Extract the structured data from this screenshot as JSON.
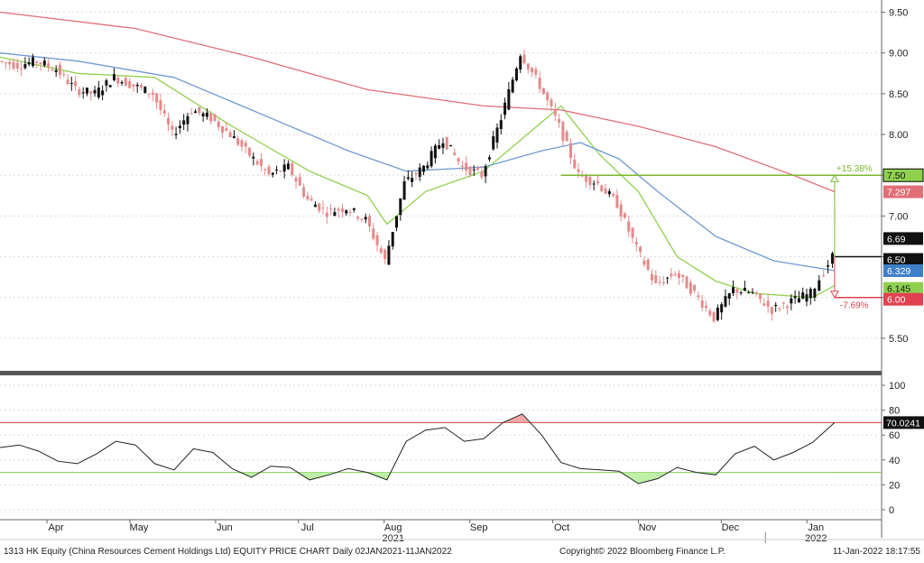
{
  "footer": {
    "left": "1313 HK Equity (China Resources Cement Holdings Ltd) EQUITY PRICE CHART  Daily 02JAN2021-11JAN2022",
    "center": "Copyright© 2022 Bloomberg Finance L.P.",
    "right": "11-Jan-2022  18:17:55"
  },
  "colors": {
    "up": "#111111",
    "down": "#e58a8a",
    "ma_green": "#8fd14f",
    "ma_blue": "#6f9bd1",
    "ma_red": "#e06f76",
    "target_up": "#7ab72b",
    "target_down": "#e0424f",
    "rsi_line": "#222222",
    "rsi_ob": "#c7302f",
    "rsi_os": "#7ac943",
    "panel_sep": "#555555"
  },
  "chart_data": [
    {
      "type": "candlestick",
      "x_axis": {
        "months": [
          "Apr",
          "May",
          "Jun",
          "Jul",
          "Aug",
          "Sep",
          "Oct",
          "Nov",
          "Dec",
          "Jan"
        ],
        "years": [
          {
            "label": "2021",
            "under": "Aug"
          },
          {
            "label": "2022",
            "under": "Jan"
          }
        ],
        "range": [
          "2021-03-15",
          "2022-01-28"
        ]
      },
      "y_axis": {
        "ticks": [
          5.5,
          6.0,
          6.5,
          7.0,
          7.5,
          8.0,
          8.5,
          9.0,
          9.5
        ],
        "tick_labels": [
          "5.50",
          "6.00",
          "6.50",
          "7.00",
          "7.50",
          "8.00",
          "8.50",
          "9.00",
          "9.50"
        ],
        "range": [
          5.1,
          9.65
        ],
        "side": "right"
      },
      "close_series": [
        [
          "2021-03-15",
          8.9
        ],
        [
          "2021-03-22",
          8.85
        ],
        [
          "2021-03-29",
          8.9
        ],
        [
          "2021-04-05",
          8.8
        ],
        [
          "2021-04-12",
          8.55
        ],
        [
          "2021-04-19",
          8.5
        ],
        [
          "2021-04-26",
          8.7
        ],
        [
          "2021-05-03",
          8.6
        ],
        [
          "2021-05-10",
          8.5
        ],
        [
          "2021-05-17",
          8.0
        ],
        [
          "2021-05-24",
          8.3
        ],
        [
          "2021-05-31",
          8.2
        ],
        [
          "2021-06-07",
          8.0
        ],
        [
          "2021-06-14",
          7.75
        ],
        [
          "2021-06-21",
          7.5
        ],
        [
          "2021-06-28",
          7.6
        ],
        [
          "2021-07-05",
          7.2
        ],
        [
          "2021-07-12",
          7.05
        ],
        [
          "2021-07-19",
          7.1
        ],
        [
          "2021-07-26",
          6.95
        ],
        [
          "2021-08-02",
          6.45
        ],
        [
          "2021-08-09",
          7.4
        ],
        [
          "2021-08-16",
          7.6
        ],
        [
          "2021-08-23",
          7.95
        ],
        [
          "2021-08-30",
          7.6
        ],
        [
          "2021-09-06",
          7.5
        ],
        [
          "2021-09-13",
          8.2
        ],
        [
          "2021-09-20",
          9.0
        ],
        [
          "2021-09-27",
          8.6
        ],
        [
          "2021-10-04",
          8.1
        ],
        [
          "2021-10-11",
          7.5
        ],
        [
          "2021-10-18",
          7.4
        ],
        [
          "2021-10-25",
          7.15
        ],
        [
          "2021-11-01",
          6.6
        ],
        [
          "2021-11-08",
          6.15
        ],
        [
          "2021-11-15",
          6.3
        ],
        [
          "2021-11-22",
          6.05
        ],
        [
          "2021-11-29",
          5.75
        ],
        [
          "2021-12-06",
          6.1
        ],
        [
          "2021-12-13",
          6.05
        ],
        [
          "2021-12-20",
          5.85
        ],
        [
          "2021-12-27",
          5.95
        ],
        [
          "2022-01-03",
          6.05
        ],
        [
          "2022-01-11",
          6.5
        ]
      ],
      "moving_averages": {
        "green": [
          [
            "2021-03-15",
            8.95
          ],
          [
            "2021-04-12",
            8.75
          ],
          [
            "2021-05-10",
            8.7
          ],
          [
            "2021-06-07",
            8.1
          ],
          [
            "2021-07-05",
            7.55
          ],
          [
            "2021-07-26",
            7.25
          ],
          [
            "2021-08-02",
            6.9
          ],
          [
            "2021-08-16",
            7.3
          ],
          [
            "2021-09-06",
            7.55
          ],
          [
            "2021-09-20",
            7.95
          ],
          [
            "2021-10-04",
            8.35
          ],
          [
            "2021-10-18",
            7.75
          ],
          [
            "2021-11-01",
            7.3
          ],
          [
            "2021-11-15",
            6.5
          ],
          [
            "2021-11-29",
            6.2
          ],
          [
            "2021-12-13",
            6.05
          ],
          [
            "2022-01-03",
            6.0
          ],
          [
            "2022-01-11",
            6.145
          ]
        ],
        "blue": [
          [
            "2021-03-15",
            9.0
          ],
          [
            "2021-04-12",
            8.9
          ],
          [
            "2021-05-17",
            8.7
          ],
          [
            "2021-06-14",
            8.3
          ],
          [
            "2021-07-19",
            7.8
          ],
          [
            "2021-08-09",
            7.55
          ],
          [
            "2021-09-06",
            7.6
          ],
          [
            "2021-09-27",
            7.8
          ],
          [
            "2021-10-11",
            7.9
          ],
          [
            "2021-10-25",
            7.7
          ],
          [
            "2021-11-08",
            7.3
          ],
          [
            "2021-11-29",
            6.75
          ],
          [
            "2021-12-20",
            6.45
          ],
          [
            "2022-01-11",
            6.329
          ]
        ],
        "red": [
          [
            "2021-03-15",
            9.5
          ],
          [
            "2021-05-03",
            9.3
          ],
          [
            "2021-06-14",
            8.95
          ],
          [
            "2021-07-26",
            8.55
          ],
          [
            "2021-09-06",
            8.35
          ],
          [
            "2021-10-04",
            8.3
          ],
          [
            "2021-11-01",
            8.1
          ],
          [
            "2021-11-29",
            7.85
          ],
          [
            "2021-12-27",
            7.5
          ],
          [
            "2022-01-11",
            7.297
          ]
        ]
      },
      "right_labels": [
        {
          "value": 7.5,
          "label": "7.50"
        },
        {
          "value": 7.297,
          "label": "7.297"
        },
        {
          "value": 6.69,
          "label": "6.69"
        },
        {
          "value": 6.5,
          "label": "6.50"
        },
        {
          "value": 6.329,
          "label": "6.329"
        },
        {
          "value": 6.145,
          "label": "6.145"
        },
        {
          "value": 6.0,
          "label": "6.00"
        }
      ],
      "annotations": {
        "target_up": {
          "value": 7.5,
          "from": "2021-10-04",
          "label": "+15.38%"
        },
        "target_down": {
          "value": 6.0,
          "from": "2022-01-11",
          "label": "-7.69%"
        },
        "current": {
          "value": 6.5
        }
      }
    },
    {
      "type": "line",
      "name": "RSI",
      "y_axis": {
        "ticks": [
          0,
          20,
          40,
          60,
          80,
          100
        ],
        "tick_labels": [
          "0",
          "20",
          "40",
          "60",
          "80",
          "100"
        ],
        "range": [
          -8,
          108
        ]
      },
      "levels": {
        "overbought": 70,
        "oversold": 30
      },
      "last_value": {
        "value": 70.0241,
        "label": "70.0241"
      },
      "series": [
        [
          "2021-03-15",
          50
        ],
        [
          "2021-03-22",
          52
        ],
        [
          "2021-03-29",
          47
        ],
        [
          "2021-04-05",
          39
        ],
        [
          "2021-04-12",
          37
        ],
        [
          "2021-04-19",
          45
        ],
        [
          "2021-04-26",
          55
        ],
        [
          "2021-05-03",
          52
        ],
        [
          "2021-05-10",
          37
        ],
        [
          "2021-05-17",
          32
        ],
        [
          "2021-05-24",
          49
        ],
        [
          "2021-05-31",
          46
        ],
        [
          "2021-06-07",
          33
        ],
        [
          "2021-06-14",
          26
        ],
        [
          "2021-06-21",
          35
        ],
        [
          "2021-06-28",
          34
        ],
        [
          "2021-07-05",
          24
        ],
        [
          "2021-07-12",
          28
        ],
        [
          "2021-07-19",
          33
        ],
        [
          "2021-07-26",
          30
        ],
        [
          "2021-08-02",
          24
        ],
        [
          "2021-08-09",
          55
        ],
        [
          "2021-08-16",
          64
        ],
        [
          "2021-08-23",
          66
        ],
        [
          "2021-08-30",
          55
        ],
        [
          "2021-09-06",
          57
        ],
        [
          "2021-09-13",
          70
        ],
        [
          "2021-09-20",
          77
        ],
        [
          "2021-09-27",
          60
        ],
        [
          "2021-10-04",
          38
        ],
        [
          "2021-10-11",
          33
        ],
        [
          "2021-10-18",
          32
        ],
        [
          "2021-10-25",
          31
        ],
        [
          "2021-11-01",
          21
        ],
        [
          "2021-11-08",
          25
        ],
        [
          "2021-11-15",
          34
        ],
        [
          "2021-11-22",
          30
        ],
        [
          "2021-11-29",
          28
        ],
        [
          "2021-12-06",
          45
        ],
        [
          "2021-12-13",
          51
        ],
        [
          "2021-12-20",
          40
        ],
        [
          "2021-12-27",
          46
        ],
        [
          "2022-01-03",
          54
        ],
        [
          "2022-01-11",
          70.0241
        ]
      ]
    }
  ]
}
